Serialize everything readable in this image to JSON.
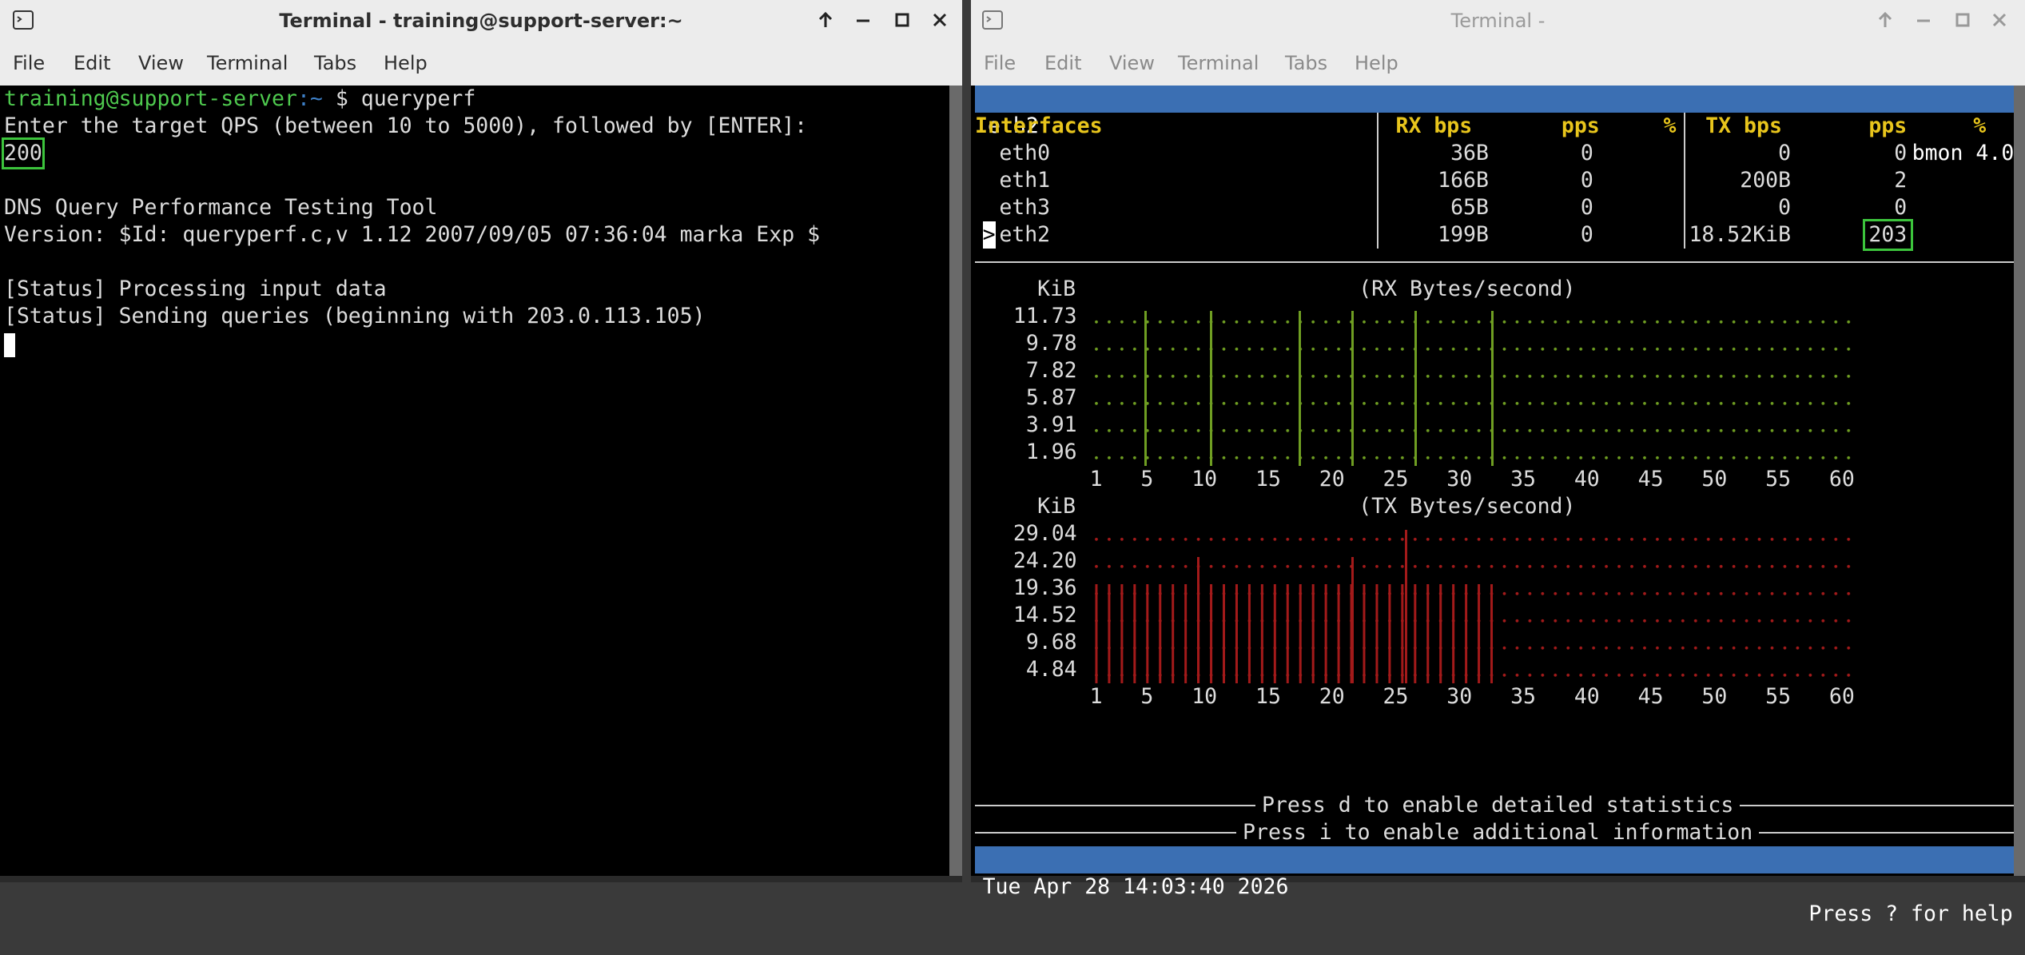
{
  "left_window": {
    "title": "Terminal - training@support-server:~",
    "menu": [
      "File",
      "Edit",
      "View",
      "Terminal",
      "Tabs",
      "Help"
    ],
    "terminal": {
      "prompt_user": "training@support-server",
      "prompt_path": ":~",
      "command": "$ queryperf",
      "prompt_question": "Enter the target QPS (between 10 to 5000), followed by [ENTER]:",
      "input": "200",
      "tool_name": "DNS Query Performance Testing Tool",
      "version": "Version: $Id: queryperf.c,v 1.12 2007/09/05 07:36:04 marka Exp $",
      "status_1": "[Status] Processing input data",
      "status_2": "[Status] Sending queries (beginning with 203.0.113.105)"
    }
  },
  "right_window": {
    "title": "Terminal -",
    "menu": [
      "File",
      "Edit",
      "View",
      "Terminal",
      "Tabs",
      "Help"
    ],
    "bmon": {
      "current_interface": "eth2",
      "version": "bmon 4.0",
      "headers": [
        "Interfaces",
        "RX bps",
        "pps",
        "%",
        "TX bps",
        "pps",
        "%"
      ],
      "selected_marker": ">",
      "interfaces": [
        {
          "name": "eth0",
          "rx_bps": "36B",
          "rx_pps": 0,
          "tx_bps": "0",
          "tx_pps": 0
        },
        {
          "name": "eth1",
          "rx_bps": "166B",
          "rx_pps": 0,
          "tx_bps": "200B",
          "tx_pps": 2
        },
        {
          "name": "eth3",
          "rx_bps": "65B",
          "rx_pps": 0,
          "tx_bps": "0",
          "tx_pps": 0
        },
        {
          "name": "eth2",
          "rx_bps": "199B",
          "rx_pps": 0,
          "tx_bps": "18.52KiB",
          "tx_pps": 203
        }
      ],
      "rx_graph": {
        "unit": "KiB",
        "title": "(RX Bytes/second)",
        "y_labels": [
          "11.73",
          "9.78",
          "7.82",
          "5.87",
          "3.91",
          "1.96"
        ],
        "x_labels": [
          1,
          5,
          10,
          15,
          20,
          25,
          30,
          35,
          40,
          45,
          50,
          55,
          60
        ]
      },
      "tx_graph": {
        "unit": "KiB",
        "title": "(TX Bytes/second)",
        "y_labels": [
          "29.04",
          "24.20",
          "19.36",
          "14.52",
          "9.68",
          "4.84"
        ],
        "x_labels": [
          1,
          5,
          10,
          15,
          20,
          25,
          30,
          35,
          40,
          45,
          50,
          55,
          60
        ]
      },
      "hint_detailed": "Press d to enable detailed statistics",
      "hint_info": "Press i to enable additional information",
      "datetime": "Tue Apr 28 14:03:40 2026",
      "help": "Press ? for help"
    }
  }
}
